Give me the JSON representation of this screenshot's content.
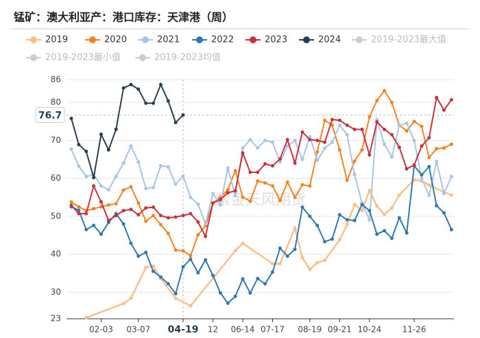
{
  "chart_data": {
    "type": "line",
    "title": "锰矿：澳大利亚产：港口库存：天津港（周）",
    "watermark": "紫金天风期货",
    "categories": [
      null,
      null,
      null,
      null,
      "02-03",
      null,
      null,
      null,
      null,
      "03-07",
      null,
      null,
      null,
      null,
      null,
      "04-19",
      null,
      null,
      null,
      "12",
      null,
      null,
      null,
      "06-14",
      null,
      null,
      null,
      "07-17",
      null,
      null,
      null,
      null,
      "08-19",
      null,
      null,
      null,
      "09-21",
      null,
      null,
      null,
      "10-24",
      null,
      null,
      null,
      null,
      null,
      "11-26",
      null,
      null,
      null,
      null,
      null
    ],
    "ylim": [
      23,
      86
    ],
    "yticks": [
      23,
      30,
      40,
      50,
      60,
      70,
      80,
      86
    ],
    "grid": true,
    "pointer": {
      "category": "04-19",
      "value": 76.7
    },
    "series": [
      {
        "name": "2019",
        "color": "#f9c189",
        "connect_nulls": true,
        "values": [
          null,
          null,
          23.3,
          null,
          null,
          null,
          null,
          27.0,
          28.4,
          null,
          36.5,
          36.9,
          33.6,
          null,
          28.4,
          null,
          26.4,
          null,
          null,
          null,
          null,
          null,
          40.9,
          42.9,
          null,
          null,
          null,
          37.5,
          37.5,
          null,
          46.9,
          39.1,
          36.0,
          37.8,
          38.4,
          null,
          43.8,
          47.8,
          53.1,
          51.5,
          56.8,
          52.7,
          50.5,
          52.2,
          55.6,
          null,
          59.6,
          59.3,
          58.2,
          null,
          56.4,
          55.6
        ]
      },
      {
        "name": "2020",
        "color": "#f58220",
        "values": [
          53.8,
          52.5,
          51.5,
          52.0,
          52.5,
          53.0,
          53.3,
          56.9,
          57.8,
          53.5,
          48.7,
          50.2,
          47.8,
          45.5,
          41.1,
          40.9,
          39.6,
          45.1,
          47.5,
          53.5,
          55.0,
          57.0,
          62.0,
          55.0,
          54.0,
          59.3,
          58.8,
          58.0,
          54.2,
          59.0,
          55.0,
          58.3,
          58.0,
          67.0,
          75.3,
          74.0,
          67.5,
          59.5,
          64.5,
          67.5,
          76.2,
          80.5,
          83.1,
          80.0,
          74.0,
          72.5,
          75.0,
          73.7,
          65.5,
          67.8,
          68.0,
          69.0
        ]
      },
      {
        "name": "2021",
        "color": "#a9c4e6",
        "values": [
          67.7,
          63.2,
          60.5,
          61.0,
          58.0,
          57.0,
          60.5,
          64.0,
          68.5,
          64.3,
          57.3,
          57.6,
          63.3,
          63.0,
          58.5,
          60.6,
          55.0,
          53.2,
          48.0,
          56.0,
          53.0,
          62.7,
          55.5,
          68.0,
          70.2,
          68.0,
          70.0,
          69.5,
          64.3,
          68.5,
          70.0,
          65.0,
          71.0,
          64.7,
          68.0,
          69.5,
          74.0,
          71.5,
          61.0,
          53.5,
          49.0,
          75.5,
          69.0,
          65.6,
          74.0,
          74.5,
          70.0,
          60.0,
          55.5,
          64.5,
          56.0,
          60.5
        ]
      },
      {
        "name": "2022",
        "color": "#2e78b4",
        "values": [
          52.5,
          51.6,
          46.5,
          47.6,
          45.3,
          48.4,
          50.7,
          48.0,
          42.9,
          39.5,
          40.5,
          35.5,
          34.0,
          32.2,
          29.6,
          36.7,
          38.7,
          35.1,
          38.5,
          34.4,
          29.8,
          27.1,
          28.9,
          33.5,
          29.8,
          33.6,
          32.2,
          35.3,
          41.6,
          39.5,
          41.3,
          52.4,
          50.0,
          47.6,
          43.3,
          44.0,
          50.4,
          49.1,
          48.9,
          53.1,
          51.5,
          45.3,
          46.2,
          44.2,
          49.6,
          45.6,
          63.3,
          60.9,
          63.1,
          52.8,
          50.9,
          46.5
        ]
      },
      {
        "name": "2023",
        "color": "#c8323a",
        "values": [
          52.9,
          50.7,
          50.7,
          58.0,
          53.8,
          48.9,
          50.2,
          51.5,
          51.8,
          50.4,
          52.2,
          52.4,
          50.2,
          49.6,
          49.8,
          50.2,
          50.7,
          48.5,
          44.7,
          53.5,
          54.4,
          56.2,
          56.7,
          66.7,
          61.6,
          61.6,
          63.8,
          63.3,
          65.1,
          70.2,
          64.0,
          72.2,
          70.2,
          70.0,
          69.5,
          75.5,
          75.3,
          74.0,
          72.9,
          72.9,
          66.2,
          74.9,
          72.9,
          71.5,
          68.2,
          62.5,
          63.5,
          68.5,
          70.7,
          81.3,
          78.0,
          80.7
        ]
      },
      {
        "name": "2024",
        "color": "#2b3e50",
        "values": [
          75.8,
          68.9,
          67.1,
          60.2,
          71.6,
          67.5,
          72.9,
          83.8,
          84.7,
          83.5,
          79.8,
          79.8,
          84.7,
          80.4,
          74.7,
          76.7,
          null,
          null,
          null,
          null,
          null,
          null,
          null,
          null,
          null,
          null,
          null,
          null,
          null,
          null,
          null,
          null,
          null,
          null,
          null,
          null,
          null,
          null,
          null,
          null,
          null,
          null,
          null,
          null,
          null,
          null,
          null,
          null,
          null,
          null,
          null,
          null
        ]
      }
    ],
    "hidden_series": [
      {
        "name": "2019-2023最大值",
        "color": "#cccccc"
      },
      {
        "name": "2019-2023最小值",
        "color": "#cccccc"
      },
      {
        "name": "2019-2023均值",
        "color": "#cccccc"
      }
    ]
  }
}
